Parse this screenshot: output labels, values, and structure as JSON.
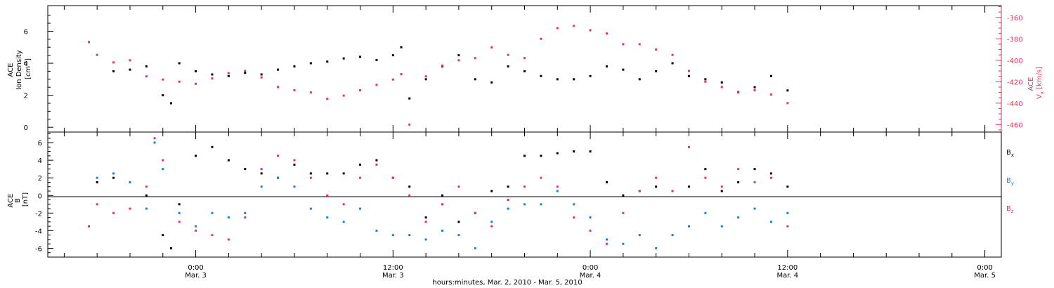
{
  "colors": {
    "black": "#000000",
    "pink": "#e8325e",
    "blue": "#1a7fdc"
  },
  "chart_data": [
    {
      "type": "scatter",
      "panel": "top",
      "ylabel": {
        "line1": "ACE",
        "line2": "Ion Density",
        "line3_prefix": "[cm",
        "line3_sup": "-3",
        "line3_suffix": "]"
      },
      "y2label": {
        "line1": "ACE",
        "line2_prefix": "V",
        "line2_sub": "x",
        "line2_suffix": " [km/s]"
      },
      "ylim": [
        -0.3,
        7.6
      ],
      "y_ticks": [
        "0",
        "2",
        "4",
        "6"
      ],
      "y2lim": [
        -467,
        -349
      ],
      "y2_ticks": [
        "-460",
        "-440",
        "-420",
        "-400",
        "-380",
        "-360"
      ],
      "series": [
        {
          "color": "black",
          "axis": "left",
          "x": [
            -5,
            -4,
            -3,
            -2,
            -1.5,
            -1,
            0,
            1,
            2,
            3,
            4,
            5,
            6,
            7,
            8,
            9,
            10,
            11,
            12,
            12.5,
            13,
            14,
            15,
            16,
            17,
            18,
            19,
            20,
            21,
            22,
            23,
            24,
            25,
            26,
            27,
            28,
            29,
            30,
            31,
            32,
            33,
            34,
            35,
            36
          ],
          "y": [
            3.5,
            3.6,
            3.8,
            2.0,
            1.5,
            4.0,
            3.5,
            3.3,
            3.2,
            3.4,
            3.3,
            3.6,
            3.8,
            4.0,
            4.1,
            4.3,
            4.4,
            4.2,
            4.5,
            5.0,
            1.8,
            3.0,
            3.8,
            4.5,
            3.0,
            2.8,
            3.8,
            3.5,
            3.2,
            3.0,
            3.0,
            3.2,
            3.8,
            3.6,
            3.0,
            3.5,
            4.0,
            3.2,
            3.0,
            2.8,
            2.2,
            2.5,
            3.2,
            2.3
          ]
        },
        {
          "color": "pink",
          "axis": "right",
          "x": [
            -6.5,
            -6,
            -5,
            -4,
            -3,
            -2,
            -1,
            0,
            1,
            2,
            3,
            4,
            5,
            6,
            7,
            8,
            9,
            10,
            11,
            12,
            12.5,
            13,
            14,
            15,
            16,
            17,
            18,
            19,
            20,
            21,
            22,
            23,
            24,
            25,
            26,
            27,
            28,
            29,
            30,
            31,
            32,
            33,
            34,
            35,
            36
          ],
          "y": [
            -383,
            -395,
            -402,
            -400,
            -415,
            -418,
            -420,
            -422,
            -417,
            -412,
            -410,
            -416,
            -425,
            -428,
            -430,
            -436,
            -433,
            -428,
            -423,
            -418,
            -413,
            -460,
            -415,
            -405,
            -400,
            -398,
            -388,
            -395,
            -398,
            -380,
            -370,
            -368,
            -372,
            -375,
            -385,
            -385,
            -390,
            -395,
            -410,
            -420,
            -425,
            -430,
            -428,
            -432,
            -440
          ]
        }
      ]
    },
    {
      "type": "scatter",
      "panel": "bottom",
      "ylabel": {
        "line1": "ACE",
        "line2": "B",
        "line3": "[nT]"
      },
      "ylim": [
        -7,
        7.2
      ],
      "y_ticks": [
        "-6",
        "-4",
        "-2",
        "0",
        "2",
        "4",
        "6"
      ],
      "legend": [
        {
          "label_main": "B",
          "label_sub": "x",
          "color": "black"
        },
        {
          "label_main": "B",
          "label_sub": "y",
          "color": "blue"
        },
        {
          "label_main": "B",
          "label_sub": "z",
          "color": "pink"
        }
      ],
      "series": [
        {
          "color": "black",
          "x": [
            -6,
            -5,
            -4,
            -3,
            -2,
            -1.5,
            -1,
            0,
            1,
            2,
            3,
            4,
            5,
            6,
            7,
            8,
            9,
            10,
            11,
            12,
            13,
            14,
            15,
            16,
            17,
            18,
            19,
            20,
            21,
            22,
            23,
            24,
            25,
            26,
            27,
            28,
            29,
            30,
            31,
            32,
            33,
            34,
            35,
            36
          ],
          "y": [
            1.5,
            2.0,
            1.5,
            0,
            -4.5,
            -6,
            -1,
            4.5,
            5.5,
            4.0,
            3.0,
            2.5,
            2.0,
            3.5,
            2.5,
            2.5,
            2.5,
            3.5,
            4.0,
            2.0,
            1.0,
            -2.5,
            0,
            -3.0,
            -2.0,
            0.5,
            1.0,
            4.5,
            4.5,
            4.8,
            5.0,
            5.0,
            1.5,
            0,
            0.5,
            1.0,
            0.5,
            1.0,
            3.0,
            0.5,
            1.5,
            3.0,
            2.5,
            1.0
          ]
        },
        {
          "color": "blue",
          "x": [
            -6,
            -5,
            -4,
            -3,
            -2.5,
            -2,
            -1,
            0,
            1,
            2,
            3,
            4,
            5,
            6,
            7,
            8,
            9,
            10,
            11,
            12,
            13,
            14,
            15,
            16,
            17,
            18,
            19,
            20,
            21,
            22,
            23,
            24,
            25,
            26,
            27,
            28,
            29,
            30,
            31,
            32,
            33,
            34,
            35,
            36
          ],
          "y": [
            2.0,
            2.5,
            1.5,
            -1.5,
            6.0,
            3.0,
            -2.0,
            -3.5,
            -2.0,
            -2.5,
            -2.0,
            1.0,
            2.0,
            1.0,
            -1.5,
            -2.5,
            -3.0,
            -1.5,
            -4.0,
            -4.5,
            -4.5,
            -5.0,
            -4.0,
            -4.5,
            -6.0,
            -3.0,
            -1.5,
            -1.0,
            -1.0,
            0.5,
            -1.0,
            -2.5,
            -5.0,
            -5.5,
            -4.5,
            -6.0,
            -4.5,
            -3.5,
            -2.0,
            -3.5,
            -2.5,
            -1.5,
            -3.0,
            -2.0
          ]
        },
        {
          "color": "pink",
          "x": [
            -6.5,
            -6,
            -5,
            -4,
            -3,
            -2.5,
            -2,
            -1,
            0,
            1,
            2,
            3,
            4,
            5,
            6,
            7,
            8,
            9,
            10,
            11,
            12,
            13,
            14,
            15,
            16,
            17,
            18,
            19,
            20,
            21,
            22,
            23,
            24,
            25,
            26,
            27,
            28,
            29,
            30,
            31,
            32,
            33,
            34,
            35,
            36
          ],
          "y": [
            -3.5,
            -1.0,
            -2.0,
            -1.5,
            1.0,
            6.5,
            4.0,
            -3.0,
            -4.0,
            -4.5,
            -5.0,
            -2.5,
            3.0,
            4.5,
            4.0,
            2.0,
            0,
            -1.0,
            2.0,
            3.5,
            2.0,
            0,
            -3.0,
            -1.0,
            1.0,
            -2.0,
            -3.5,
            -0.5,
            1.0,
            2.0,
            1.0,
            -2.5,
            -4.0,
            -5.5,
            -2.0,
            0.5,
            2.0,
            0.5,
            5.5,
            2.0,
            1.0,
            3.0,
            1.5,
            2.0,
            -3.5
          ]
        }
      ]
    }
  ],
  "x_axis": {
    "xlim": [
      -9,
      49
    ],
    "major_ticks": [
      {
        "x": 0,
        "time": "0:00",
        "date": "Mar. 3"
      },
      {
        "x": 12,
        "time": "12:00",
        "date": "Mar. 3"
      },
      {
        "x": 24,
        "time": "0:00",
        "date": "Mar. 4"
      },
      {
        "x": 36,
        "time": "12:00",
        "date": "Mar. 4"
      },
      {
        "x": 48,
        "time": "0:00",
        "date": "Mar. 5"
      }
    ],
    "title": "hours:minutes, Mar. 2, 2010 - Mar. 5, 2010"
  }
}
